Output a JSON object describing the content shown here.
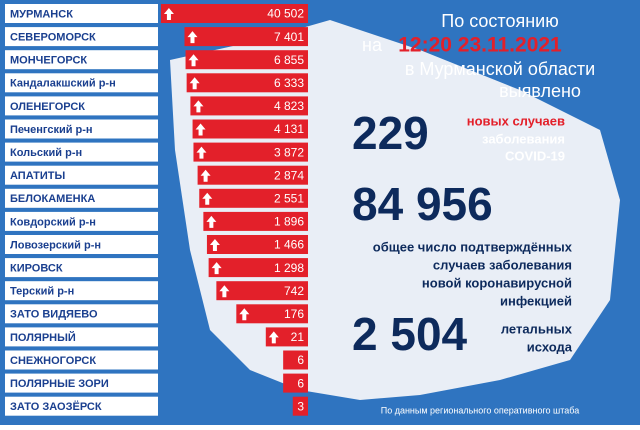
{
  "chart_data": {
    "type": "bar",
    "orientation": "horizontal",
    "log": true,
    "xlim": [
      1,
      50000
    ],
    "color": "#e3202a",
    "categories": [
      "МУРМАНСК",
      "СЕВЕРОМОРСК",
      "МОНЧЕГОРСК",
      "Кандалакшский р-н",
      "ОЛЕНЕГОРСК",
      "Печенгский р-н",
      "Кольский р-н",
      "АПАТИТЫ",
      "БЕЛОКАМЕНКА",
      "Ковдорский р-н",
      "Ловозерский р-н",
      "КИРОВСК",
      "Терский р-н",
      "ЗАТО ВИДЯЕВО",
      "ПОЛЯРНЫЙ",
      "СНЕЖНОГОРСК",
      "ПОЛЯРНЫЕ ЗОРИ",
      "ЗАТО ЗАОЗЁРСК"
    ],
    "values": [
      40502,
      7401,
      6855,
      6333,
      4823,
      4131,
      3872,
      2874,
      2551,
      1896,
      1466,
      1298,
      742,
      176,
      21,
      6,
      6,
      3
    ],
    "value_labels": [
      "40 502",
      "7 401",
      "6 855",
      "6 333",
      "4 823",
      "4 131",
      "3 872",
      "2 874",
      "2 551",
      "1 896",
      "1 466",
      "1 298",
      "742",
      "176",
      "21",
      "6",
      "6",
      "3"
    ]
  },
  "info": {
    "header": [
      "По состоянию",
      "на",
      "12:20 23.11.2021",
      "в Мурманской области",
      "выявлено"
    ],
    "new_cases": {
      "number": "229",
      "label_red": "новых случаев",
      "label": [
        "заболевания",
        "COVID-19"
      ]
    },
    "total": {
      "number": "84 956",
      "label": [
        "общее число подтверждённых",
        "случаев заболевания",
        "новой коронавирусной",
        "инфекцией"
      ]
    },
    "deaths": {
      "number": "2 504",
      "label": [
        "летальных",
        "исхода"
      ]
    },
    "source": "По данным регионального оперативного штаба"
  }
}
